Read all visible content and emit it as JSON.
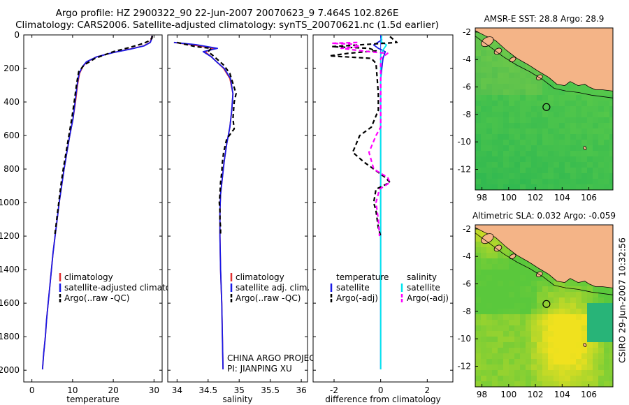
{
  "header": {
    "line1": "Argo profile: HZ 2900322_90 22-Jun-2007 20070623_9 7.464S 102.826E",
    "line2": "Climatology: CARS2006. Satellite-adjusted climatology: synTS_20070621.nc (1.5d earlier)"
  },
  "side_label": "CSIRO 29-Jun-2007 10:32:56",
  "colors": {
    "climatology": "#e03030",
    "satellite": "#1a1ae6",
    "argo": "#000000",
    "salinity_sat": "#00e5ee",
    "salinity_argo": "#ff00ff",
    "land": "#f4b487",
    "sea_green": "#3fbf3f"
  },
  "chart_data": [
    {
      "type": "line",
      "name": "temperature-profile",
      "xlabel": "temperature",
      "ylabel": "",
      "xlim": [
        -2,
        32
      ],
      "ylim": [
        2070,
        0
      ],
      "xticks": [
        "0",
        "10",
        "20",
        "30"
      ],
      "yticks": [
        "0",
        "200",
        "400",
        "600",
        "800",
        "1000",
        "1200",
        "1400",
        "1600",
        "1800",
        "2000"
      ],
      "xtick_values": [
        0,
        10,
        20,
        30
      ],
      "ytick_values": [
        0,
        200,
        400,
        600,
        800,
        1000,
        1200,
        1400,
        1600,
        1800,
        2000
      ],
      "legend": [
        "climatology",
        "satellite-adjusted climatology",
        "Argo(..raw -QC)"
      ],
      "series": [
        {
          "name": "climatology",
          "color": "#e03030",
          "dash": "",
          "points": [
            [
              29.5,
              5
            ],
            [
              29.3,
              25
            ],
            [
              29,
              45
            ],
            [
              27.5,
              65
            ],
            [
              24,
              85
            ],
            [
              20,
              105
            ],
            [
              16,
              130
            ],
            [
              13.5,
              160
            ],
            [
              12.5,
              190
            ],
            [
              11.7,
              230
            ],
            [
              11.2,
              300
            ],
            [
              10.7,
              400
            ],
            [
              10.1,
              500
            ],
            [
              9.3,
              600
            ],
            [
              8.6,
              700
            ],
            [
              7.9,
              800
            ],
            [
              7.3,
              900
            ],
            [
              6.7,
              1000
            ],
            [
              6.2,
              1100
            ],
            [
              5.7,
              1200
            ],
            [
              5.2,
              1300
            ],
            [
              4.8,
              1400
            ],
            [
              4.4,
              1500
            ],
            [
              4.0,
              1600
            ],
            [
              3.6,
              1700
            ],
            [
              3.3,
              1800
            ],
            [
              2.9,
              1900
            ],
            [
              2.6,
              1995
            ]
          ]
        },
        {
          "name": "satellite",
          "color": "#1a1ae6",
          "dash": "",
          "points": [
            [
              29.5,
              5
            ],
            [
              29.4,
              25
            ],
            [
              29.1,
              45
            ],
            [
              27.6,
              65
            ],
            [
              24.2,
              85
            ],
            [
              20,
              105
            ],
            [
              16,
              130
            ],
            [
              13.4,
              160
            ],
            [
              12.4,
              190
            ],
            [
              11.6,
              230
            ],
            [
              11.1,
              300
            ],
            [
              10.6,
              400
            ],
            [
              10.1,
              500
            ],
            [
              9.3,
              600
            ],
            [
              8.6,
              700
            ],
            [
              7.9,
              800
            ],
            [
              7.3,
              900
            ],
            [
              6.7,
              1000
            ],
            [
              6.2,
              1100
            ],
            [
              5.7,
              1200
            ],
            [
              5.2,
              1300
            ],
            [
              4.8,
              1400
            ],
            [
              4.4,
              1500
            ],
            [
              4.0,
              1600
            ],
            [
              3.6,
              1700
            ],
            [
              3.3,
              1800
            ],
            [
              2.9,
              1900
            ],
            [
              2.6,
              1995
            ]
          ]
        },
        {
          "name": "argo",
          "color": "#000000",
          "dash": "6,4",
          "points": [
            [
              29.6,
              5
            ],
            [
              29.5,
              20
            ],
            [
              28.8,
              35
            ],
            [
              27.5,
              50
            ],
            [
              24,
              75
            ],
            [
              20,
              100
            ],
            [
              15.5,
              140
            ],
            [
              12.8,
              180
            ],
            [
              11.5,
              220
            ],
            [
              11,
              290
            ],
            [
              10.4,
              400
            ],
            [
              9.8,
              500
            ],
            [
              9.1,
              600
            ],
            [
              8.4,
              700
            ],
            [
              7.7,
              800
            ],
            [
              7.1,
              900
            ],
            [
              6.6,
              1000
            ],
            [
              6.1,
              1100
            ],
            [
              5.6,
              1200
            ]
          ]
        }
      ]
    },
    {
      "type": "line",
      "name": "salinity-profile",
      "xlabel": "salinity",
      "ylabel": "",
      "xlim": [
        33.85,
        36.1
      ],
      "ylim": [
        2070,
        0
      ],
      "xticks": [
        "34",
        "34.5",
        "35",
        "35.5",
        "36"
      ],
      "yticks": [],
      "xtick_values": [
        34,
        34.5,
        35,
        35.5,
        36
      ],
      "ytick_values": [],
      "legend": [
        "climatology",
        "satellite adj. clim.",
        "Argo(..raw -QC)"
      ],
      "annotation": [
        "CHINA ARGO PROJECT",
        "PI: JIANPING XU"
      ],
      "series": [
        {
          "name": "climatology",
          "color": "#e03030",
          "dash": "",
          "points": [
            [
              33.95,
              45
            ],
            [
              34.25,
              60
            ],
            [
              34.6,
              80
            ],
            [
              34.45,
              100
            ],
            [
              34.55,
              130
            ],
            [
              34.65,
              165
            ],
            [
              34.75,
              200
            ],
            [
              34.85,
              260
            ],
            [
              34.9,
              350
            ],
            [
              34.88,
              450
            ],
            [
              34.85,
              550
            ],
            [
              34.8,
              650
            ],
            [
              34.76,
              750
            ],
            [
              34.73,
              850
            ],
            [
              34.7,
              950
            ],
            [
              34.69,
              1050
            ],
            [
              34.69,
              1200
            ],
            [
              34.7,
              1400
            ],
            [
              34.72,
              1600
            ],
            [
              34.73,
              1800
            ],
            [
              34.74,
              1995
            ]
          ]
        },
        {
          "name": "satellite",
          "color": "#1a1ae6",
          "dash": "",
          "points": [
            [
              33.95,
              45
            ],
            [
              34.3,
              58
            ],
            [
              34.65,
              80
            ],
            [
              34.42,
              100
            ],
            [
              34.55,
              130
            ],
            [
              34.65,
              165
            ],
            [
              34.76,
              200
            ],
            [
              34.86,
              260
            ],
            [
              34.9,
              350
            ],
            [
              34.88,
              450
            ],
            [
              34.85,
              550
            ],
            [
              34.8,
              650
            ],
            [
              34.76,
              750
            ],
            [
              34.73,
              850
            ],
            [
              34.7,
              950
            ],
            [
              34.69,
              1050
            ],
            [
              34.69,
              1200
            ],
            [
              34.7,
              1400
            ],
            [
              34.72,
              1600
            ],
            [
              34.73,
              1800
            ],
            [
              34.74,
              1995
            ]
          ]
        },
        {
          "name": "argo",
          "color": "#000000",
          "dash": "6,4",
          "points": [
            [
              34.0,
              45
            ],
            [
              34.3,
              70
            ],
            [
              34.55,
              80
            ],
            [
              34.5,
              100
            ],
            [
              34.6,
              130
            ],
            [
              34.75,
              180
            ],
            [
              34.85,
              230
            ],
            [
              34.9,
              290
            ],
            [
              34.95,
              350
            ],
            [
              34.92,
              400
            ],
            [
              34.9,
              500
            ],
            [
              34.92,
              560
            ],
            [
              34.8,
              620
            ],
            [
              34.75,
              700
            ],
            [
              34.73,
              760
            ],
            [
              34.72,
              820
            ],
            [
              34.7,
              880
            ],
            [
              34.69,
              950
            ],
            [
              34.68,
              1000
            ],
            [
              34.69,
              1050
            ],
            [
              34.69,
              1100
            ],
            [
              34.7,
              1150
            ],
            [
              34.7,
              1200
            ]
          ]
        }
      ]
    },
    {
      "type": "line",
      "name": "difference-profile",
      "xlabel": "difference from climatology",
      "ylabel": "",
      "xlim": [
        -2.9,
        3.1
      ],
      "ylim": [
        2070,
        0
      ],
      "xticks": [
        "-2",
        "0",
        "2"
      ],
      "yticks": [],
      "xtick_values": [
        -2,
        0,
        2
      ],
      "ytick_values": [],
      "legend": [
        "temperature",
        "satellite",
        "Argo(-adj)",
        "salinity",
        "satellite",
        "Argo(-adj)"
      ],
      "series": [
        {
          "name": "temperature-satellite",
          "color": "#1a1ae6",
          "dash": "",
          "points": [
            [
              0,
              5
            ],
            [
              0.05,
              30
            ],
            [
              -0.3,
              60
            ],
            [
              -0.1,
              80
            ],
            [
              0.2,
              100
            ],
            [
              0.1,
              140
            ],
            [
              0.05,
              200
            ],
            [
              0,
              260
            ],
            [
              0,
              400
            ],
            [
              0,
              800
            ],
            [
              0,
              1200
            ],
            [
              0,
              1600
            ],
            [
              0,
              1995
            ]
          ]
        },
        {
          "name": "salinity-satellite",
          "color": "#00e5ee",
          "dash": "",
          "points": [
            [
              0.05,
              5
            ],
            [
              0.02,
              40
            ],
            [
              0.25,
              60
            ],
            [
              0.1,
              90
            ],
            [
              0,
              120
            ],
            [
              0,
              400
            ],
            [
              0,
              800
            ],
            [
              0,
              1200
            ],
            [
              0,
              1600
            ],
            [
              0,
              1995
            ]
          ]
        },
        {
          "name": "temperature-argo",
          "color": "#000000",
          "dash": "6,4",
          "points": [
            [
              0.4,
              10
            ],
            [
              0.7,
              45
            ],
            [
              -2.1,
              70
            ],
            [
              -0.5,
              80
            ],
            [
              -0.2,
              95
            ],
            [
              -1.4,
              110
            ],
            [
              -2.2,
              125
            ],
            [
              -0.4,
              140
            ],
            [
              -0.2,
              170
            ],
            [
              -0.15,
              260
            ],
            [
              -0.1,
              350
            ],
            [
              -0.1,
              450
            ],
            [
              -0.4,
              550
            ],
            [
              -0.9,
              600
            ],
            [
              -1.2,
              700
            ],
            [
              -0.7,
              760
            ],
            [
              -0.3,
              800
            ],
            [
              0.2,
              850
            ],
            [
              0.4,
              880
            ],
            [
              -0.2,
              920
            ],
            [
              -0.3,
              1000
            ],
            [
              -0.2,
              1050
            ],
            [
              -0.1,
              1150
            ],
            [
              0,
              1200
            ]
          ]
        },
        {
          "name": "salinity-argo",
          "color": "#ff00ff",
          "dash": "6,4",
          "points": [
            [
              -1.0,
              45
            ],
            [
              -2.1,
              50
            ],
            [
              -1.2,
              55
            ],
            [
              -0.9,
              70
            ],
            [
              -1.7,
              80
            ],
            [
              -0.5,
              100
            ],
            [
              0.3,
              110
            ],
            [
              0,
              140
            ],
            [
              0,
              300
            ],
            [
              0,
              550
            ],
            [
              -0.2,
              600
            ],
            [
              -0.5,
              700
            ],
            [
              -0.3,
              800
            ],
            [
              0.3,
              850
            ],
            [
              0.4,
              880
            ],
            [
              -0.05,
              920
            ],
            [
              -0.2,
              1000
            ],
            [
              -0.1,
              1100
            ],
            [
              -0.05,
              1200
            ]
          ]
        }
      ]
    },
    {
      "type": "heatmap",
      "name": "amsre-sst-map",
      "title": "AMSR-E SST: 28.8  Argo: 28.9",
      "xlim": [
        97.5,
        107.8
      ],
      "ylim": [
        -13.5,
        -1.7
      ],
      "xticks": [
        "98",
        "100",
        "102",
        "104",
        "106"
      ],
      "yticks": [
        "-2",
        "-4",
        "-6",
        "-8",
        "-10",
        "-12"
      ],
      "xtick_values": [
        98,
        100,
        102,
        104,
        106
      ],
      "ytick_values": [
        -2,
        -4,
        -6,
        -8,
        -10,
        -12
      ],
      "argo_location": [
        102.826,
        -7.464
      ]
    },
    {
      "type": "heatmap",
      "name": "altimetric-sla-map",
      "title": "Altimetric SLA: 0.032  Argo: -0.059",
      "xlim": [
        97.5,
        107.8
      ],
      "ylim": [
        -13.5,
        -1.7
      ],
      "xticks": [
        "98",
        "100",
        "102",
        "104",
        "106"
      ],
      "yticks": [
        "-2",
        "-4",
        "-6",
        "-8",
        "-10",
        "-12"
      ],
      "xtick_values": [
        98,
        100,
        102,
        104,
        106
      ],
      "ytick_values": [
        -2,
        -4,
        -6,
        -8,
        -10,
        -12
      ],
      "argo_location": [
        102.826,
        -7.464
      ]
    }
  ]
}
